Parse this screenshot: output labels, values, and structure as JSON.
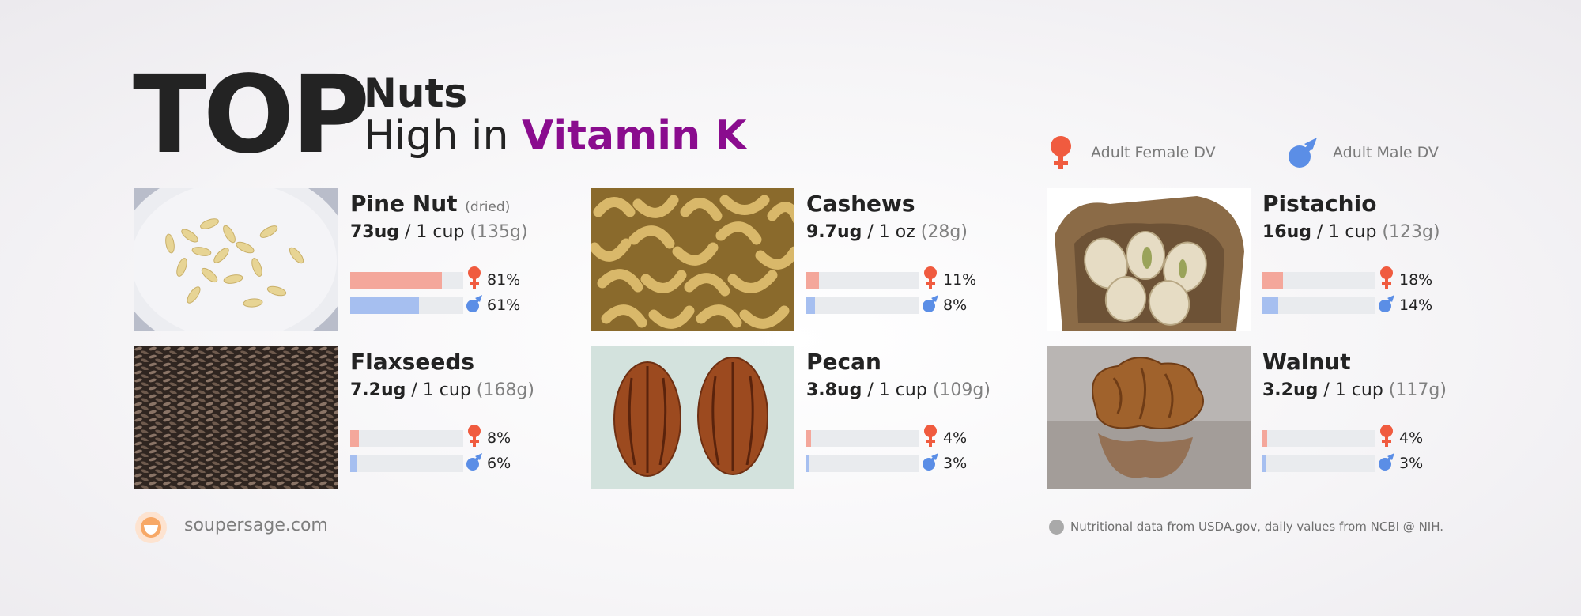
{
  "header": {
    "top": "TOP",
    "line1": "Nuts",
    "line2_prefix": "High in ",
    "line2_accent": "Vitamin K"
  },
  "legend": {
    "female_label": "Adult Female DV",
    "male_label": "Adult Male DV",
    "female_icon": "female-symbol-icon",
    "male_icon": "male-symbol-icon"
  },
  "colors": {
    "accent": "#8a0c8e",
    "female": "#f05b3f",
    "male": "#5b8ee6",
    "female_bar": "#f4a79b",
    "male_bar": "#a6bff0",
    "track": "#e9ebee"
  },
  "chart_data": {
    "type": "bar",
    "categories": [
      "Pine Nut",
      "Cashews",
      "Pistachio",
      "Flaxseeds",
      "Pecan",
      "Walnut"
    ],
    "series": [
      {
        "name": "Adult Female DV",
        "values": [
          81,
          11,
          18,
          8,
          4,
          4
        ]
      },
      {
        "name": "Adult Male DV",
        "values": [
          61,
          8,
          14,
          6,
          3,
          3
        ]
      }
    ],
    "ylim": [
      0,
      100
    ]
  },
  "items": [
    {
      "name": "Pine Nut",
      "note": "(dried)",
      "amount": "73ug",
      "serving": " / 1 cup ",
      "grams": "(135g)",
      "female_pct": "81%",
      "male_pct": "61%",
      "image": "pine-nut-photo"
    },
    {
      "name": "Cashews",
      "note": "",
      "amount": "9.7ug",
      "serving": " / 1 oz ",
      "grams": "(28g)",
      "female_pct": "11%",
      "male_pct": "8%",
      "image": "cashews-photo"
    },
    {
      "name": "Pistachio",
      "note": "",
      "amount": "16ug",
      "serving": " / 1 cup ",
      "grams": "(123g)",
      "female_pct": "18%",
      "male_pct": "14%",
      "image": "pistachio-photo"
    },
    {
      "name": "Flaxseeds",
      "note": "",
      "amount": "7.2ug",
      "serving": " / 1 cup ",
      "grams": "(168g)",
      "female_pct": "8%",
      "male_pct": "6%",
      "image": "flaxseeds-photo"
    },
    {
      "name": "Pecan",
      "note": "",
      "amount": "3.8ug",
      "serving": " / 1 cup ",
      "grams": "(109g)",
      "female_pct": "4%",
      "male_pct": "3%",
      "image": "pecan-photo"
    },
    {
      "name": "Walnut",
      "note": "",
      "amount": "3.2ug",
      "serving": " / 1 cup ",
      "grams": "(117g)",
      "female_pct": "4%",
      "male_pct": "3%",
      "image": "walnut-photo"
    }
  ],
  "footer": {
    "site": "soupersage.com",
    "note": "Nutritional data from USDA.gov, daily values from NCBI @ NIH.",
    "logo_icon": "soupersage-logo-icon"
  }
}
